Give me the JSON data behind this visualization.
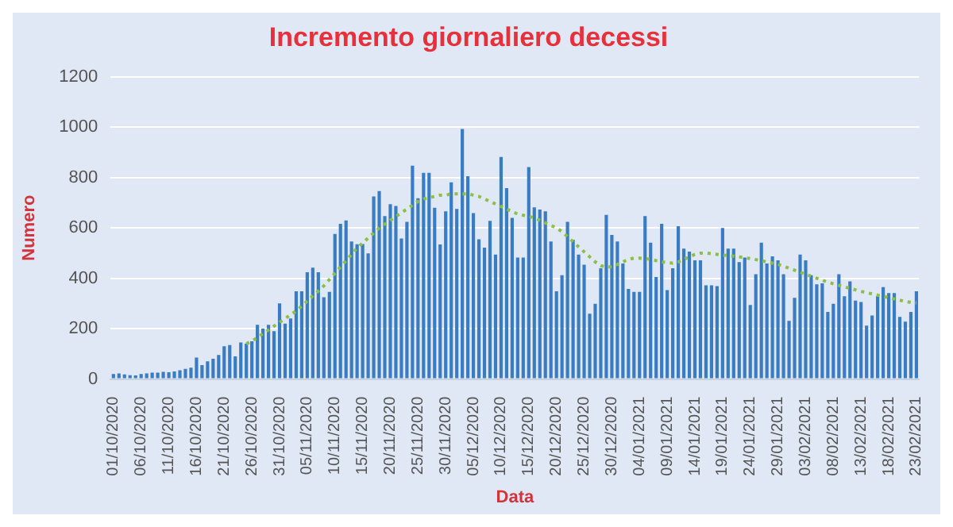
{
  "chart_data": {
    "type": "bar",
    "title": "Incremento giornaliero decessi",
    "xlabel": "Data",
    "ylabel": "Numero",
    "categories": [
      "01/10/2020",
      null,
      null,
      null,
      null,
      "06/10/2020",
      null,
      null,
      null,
      null,
      "11/10/2020",
      null,
      null,
      null,
      null,
      "16/10/2020",
      null,
      null,
      null,
      null,
      "21/10/2020",
      null,
      null,
      null,
      null,
      "26/10/2020",
      null,
      null,
      null,
      null,
      "31/10/2020",
      null,
      null,
      null,
      null,
      "05/11/2020",
      null,
      null,
      null,
      null,
      "10/11/2020",
      null,
      null,
      null,
      null,
      "15/11/2020",
      null,
      null,
      null,
      null,
      "20/11/2020",
      null,
      null,
      null,
      null,
      "25/11/2020",
      null,
      null,
      null,
      null,
      "30/11/2020",
      null,
      null,
      null,
      null,
      "05/12/2020",
      null,
      null,
      null,
      null,
      "10/12/2020",
      null,
      null,
      null,
      null,
      "15/12/2020",
      null,
      null,
      null,
      null,
      "20/12/2020",
      null,
      null,
      null,
      null,
      "25/12/2020",
      null,
      null,
      null,
      null,
      "30/12/2020",
      null,
      null,
      null,
      null,
      "04/01/2021",
      null,
      null,
      null,
      null,
      "09/01/2021",
      null,
      null,
      null,
      null,
      "14/01/2021",
      null,
      null,
      null,
      null,
      "19/01/2021",
      null,
      null,
      null,
      null,
      "24/01/2021",
      null,
      null,
      null,
      null,
      "29/01/2021",
      null,
      null,
      null,
      null,
      "03/02/2021",
      null,
      null,
      null,
      null,
      "08/02/2021",
      null,
      null,
      null,
      null,
      "13/02/2021",
      null,
      null,
      null,
      null,
      "18/02/2021",
      null,
      null,
      null,
      null,
      "23/02/2021"
    ],
    "series": [
      {
        "color": "#3a7cc2",
        "values": [
          20,
          22,
          18,
          15,
          14,
          20,
          22,
          25,
          25,
          28,
          27,
          30,
          35,
          40,
          45,
          85,
          55,
          70,
          80,
          95,
          130,
          135,
          90,
          145,
          140,
          150,
          215,
          200,
          215,
          190,
          300,
          220,
          240,
          348,
          348,
          424,
          442,
          424,
          325,
          346,
          576,
          616,
          630,
          546,
          535,
          536,
          499,
          725,
          746,
          647,
          694,
          687,
          558,
          624,
          847,
          718,
          819,
          819,
          680,
          534,
          666,
          781,
          675,
          993,
          805,
          659,
          555,
          522,
          628,
          494,
          882,
          758,
          640,
          482,
          482,
          842,
          682,
          673,
          666,
          546,
          348,
          412,
          624,
          553,
          494,
          454,
          259,
          299,
          440,
          652,
          572,
          546,
          459,
          358,
          346,
          346,
          647,
          541,
          405,
          616,
          353,
          440,
          607,
          518,
          506,
          471,
          471,
          372,
          372,
          369,
          600,
          518,
          518,
          464,
          482,
          294,
          416,
          541,
          459,
          487,
          471,
          416,
          231,
          322,
          494,
          471,
          412,
          376,
          380,
          266,
          299,
          416,
          329,
          388,
          311,
          306,
          212,
          252,
          329,
          365,
          341,
          341,
          247,
          228,
          266,
          348
        ]
      },
      {
        "type": "line",
        "color": "#8cbf45",
        "line_style": "dotted",
        "marker": "none",
        "values": [
          null,
          null,
          null,
          null,
          null,
          null,
          null,
          null,
          null,
          null,
          null,
          null,
          null,
          null,
          null,
          null,
          null,
          null,
          null,
          null,
          null,
          null,
          null,
          null,
          140,
          150,
          165,
          180,
          195,
          210,
          225,
          240,
          255,
          270,
          290,
          310,
          330,
          350,
          370,
          395,
          420,
          445,
          470,
          495,
          520,
          540,
          560,
          580,
          600,
          615,
          630,
          645,
          660,
          675,
          690,
          705,
          715,
          720,
          725,
          730,
          730,
          735,
          735,
          735,
          735,
          730,
          725,
          715,
          705,
          695,
          685,
          675,
          665,
          655,
          650,
          645,
          640,
          630,
          620,
          610,
          600,
          585,
          565,
          545,
          525,
          505,
          485,
          465,
          450,
          445,
          445,
          455,
          465,
          475,
          480,
          480,
          478,
          475,
          470,
          465,
          462,
          460,
          465,
          475,
          485,
          495,
          500,
          500,
          498,
          495,
          492,
          490,
          488,
          485,
          482,
          478,
          474,
          470,
          465,
          460,
          455,
          448,
          440,
          432,
          424,
          416,
          408,
          400,
          392,
          385,
          378,
          372,
          366,
          360,
          354,
          348,
          343,
          338,
          333,
          328,
          323,
          318,
          313,
          308,
          304,
          302
        ]
      }
    ],
    "ylim": [
      0,
      1200
    ],
    "yticks": [
      0,
      200,
      400,
      600,
      800,
      1000,
      1200
    ],
    "grid": "y",
    "legend": false
  }
}
